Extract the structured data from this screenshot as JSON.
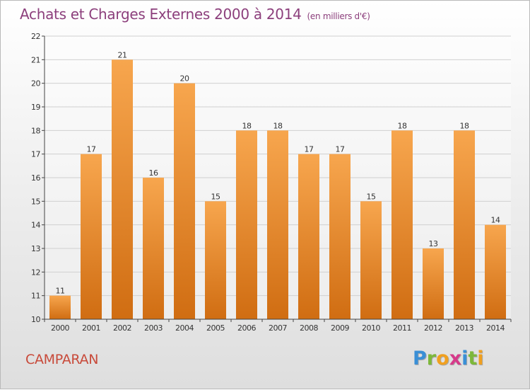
{
  "header": {
    "title": "Achats et Charges Externes 2000 à 2014",
    "subtitle": "(en milliers d'€)"
  },
  "footer": {
    "commune": "CAMPARAN",
    "logo_letters": [
      "P",
      "r",
      "o",
      "x",
      "i",
      "t",
      "i"
    ],
    "logo_colors": [
      "#3a8fd6",
      "#7db83a",
      "#f0a020",
      "#d63a8a",
      "#3a8fd6",
      "#7db83a",
      "#f0a020"
    ]
  },
  "colors": {
    "title": "#8c3f7c",
    "bar_top": "#f7a64e",
    "bar_bottom": "#d06d12",
    "axis": "#444444",
    "grid": "#d0d0d0"
  },
  "chart_data": {
    "type": "bar",
    "title": "Achats et Charges Externes 2000 à 2014",
    "subtitle": "(en milliers d'€)",
    "categories": [
      "2000",
      "2001",
      "2002",
      "2003",
      "2004",
      "2005",
      "2006",
      "2007",
      "2008",
      "2009",
      "2010",
      "2011",
      "2012",
      "2013",
      "2014"
    ],
    "values": [
      11,
      17,
      21,
      16,
      20,
      15,
      18,
      18,
      17,
      17,
      15,
      18,
      13,
      18,
      14
    ],
    "ylim": [
      10,
      22
    ],
    "yticks": [
      10,
      11,
      12,
      13,
      14,
      15,
      16,
      17,
      18,
      19,
      20,
      21,
      22
    ],
    "grid": true,
    "data_labels": true
  }
}
